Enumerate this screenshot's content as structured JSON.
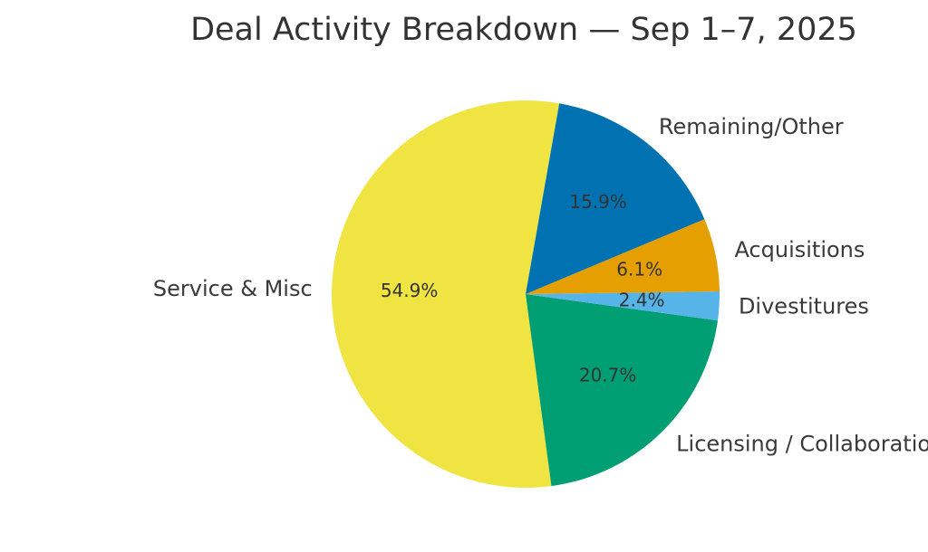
{
  "chart_data": {
    "type": "pie",
    "title": "Deal Activity Breakdown — Sep 1–7, 2025",
    "slices": [
      {
        "label": "Service & Misc",
        "value": 54.9,
        "pct_label": "54.9%",
        "color": "#f0e442"
      },
      {
        "label": "Licensing / Collaborations",
        "value": 20.7,
        "pct_label": "20.7%",
        "color": "#009e73"
      },
      {
        "label": "Divestitures",
        "value": 2.4,
        "pct_label": "2.4%",
        "color": "#56b4e9"
      },
      {
        "label": "Acquisitions",
        "value": 6.1,
        "pct_label": "6.1%",
        "color": "#e69f00"
      },
      {
        "label": "Remaining/Other",
        "value": 15.9,
        "pct_label": "15.9%",
        "color": "#0072b2"
      }
    ],
    "start_angle_deg": 80,
    "direction": "counterclockwise",
    "legend": "none"
  }
}
